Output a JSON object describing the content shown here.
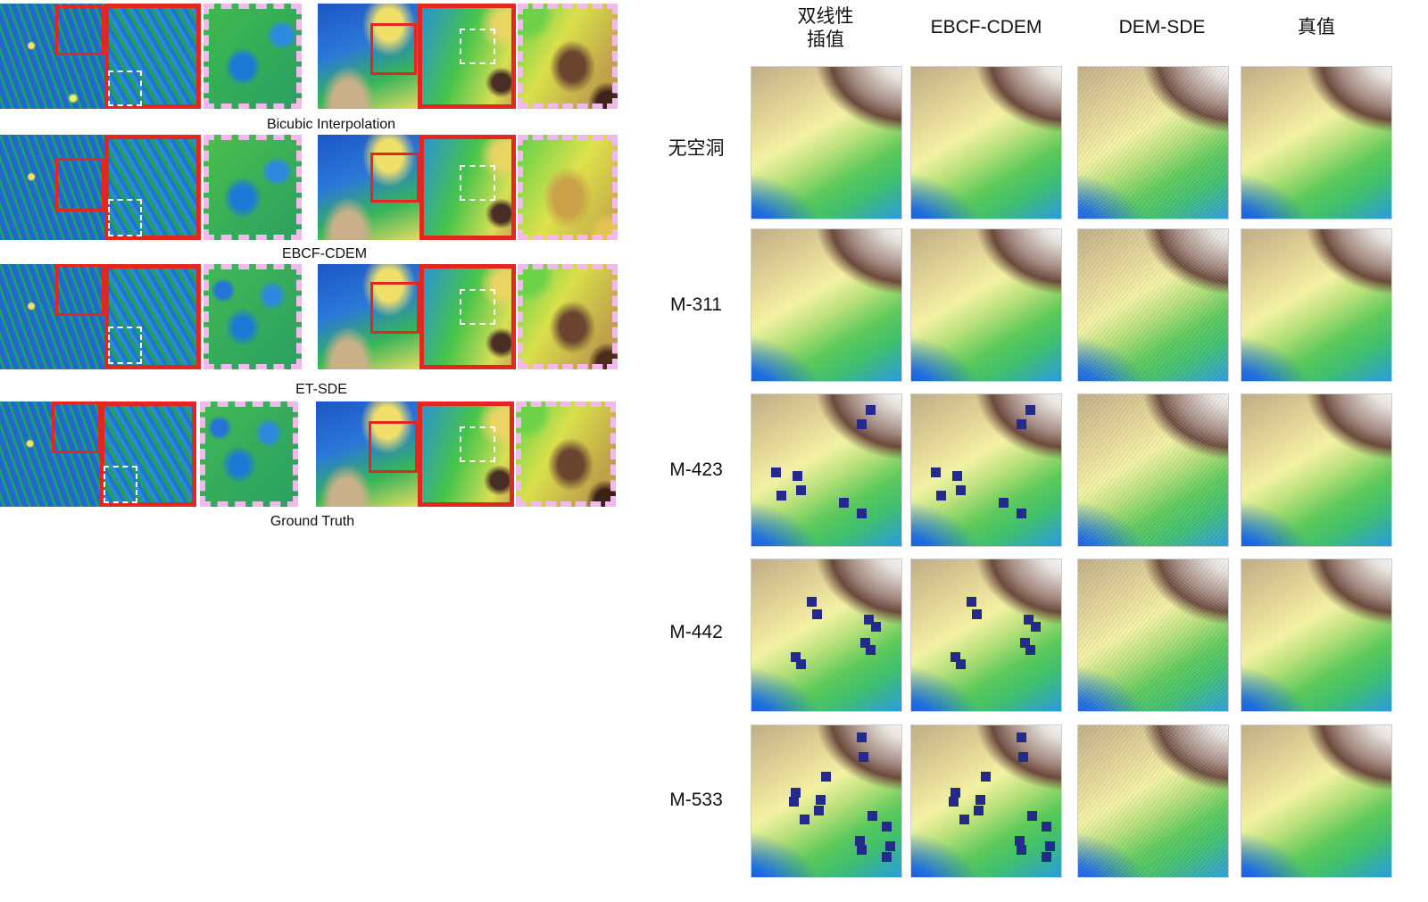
{
  "left_figure": {
    "rows": [
      {
        "caption": "Bicubic Interpolation"
      },
      {
        "caption": "EBCF-CDEM"
      },
      {
        "caption": "ET-SDE"
      },
      {
        "caption": "Ground Truth"
      }
    ]
  },
  "right_figure": {
    "columns": [
      {
        "label_line1": "双线性",
        "label_line2": "插值"
      },
      {
        "label_line1": "EBCF-CDEM",
        "label_line2": ""
      },
      {
        "label_line1": "DEM-SDE",
        "label_line2": ""
      },
      {
        "label_line1": "真值",
        "label_line2": ""
      }
    ],
    "rows": [
      {
        "label": "无空洞",
        "holes": false
      },
      {
        "label": "M-311",
        "holes": false
      },
      {
        "label": "M-423",
        "holes": true
      },
      {
        "label": "M-442",
        "holes": true
      },
      {
        "label": "M-533",
        "holes": true
      }
    ]
  },
  "colors": {
    "highlight_red": "#e3261f",
    "dashed_pink": "#f2b9ec",
    "hole_blue": "#232a8c"
  }
}
